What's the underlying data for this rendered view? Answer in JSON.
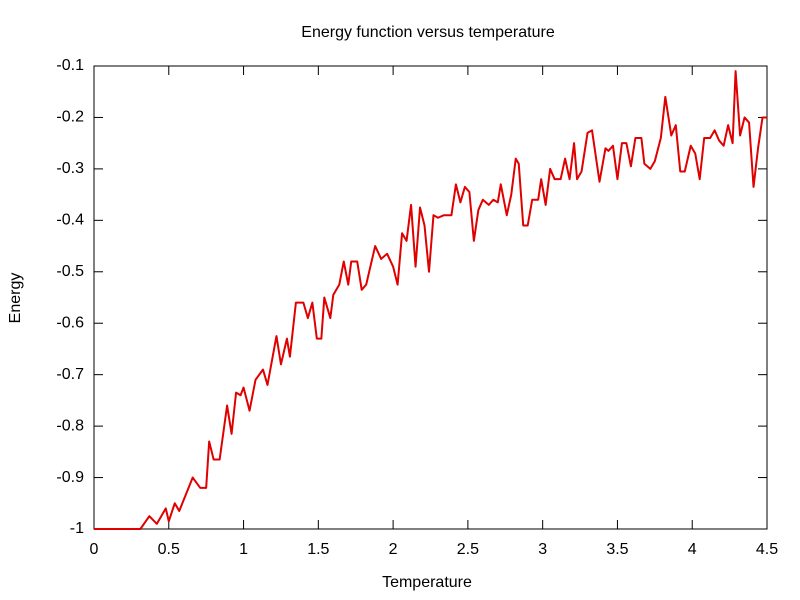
{
  "chart_data": {
    "type": "line",
    "title": "Energy function versus temperature",
    "x_label": "Temperature",
    "y_label": "Energy",
    "color": "#e00000",
    "xlim": [
      0,
      4.5
    ],
    "xticks": [
      0,
      0.5,
      1,
      1.5,
      2,
      2.5,
      3,
      3.5,
      4,
      4.5
    ],
    "ylim": [
      -1,
      -0.1
    ],
    "yticks": [
      -1,
      -0.9,
      -0.8,
      -0.7,
      -0.6,
      -0.5,
      -0.4,
      -0.3,
      -0.2,
      -0.1
    ],
    "x": [
      0,
      0.1,
      0.2,
      0.31,
      0.37,
      0.42,
      0.48,
      0.5,
      0.54,
      0.57,
      0.66,
      0.71,
      0.75,
      0.77,
      0.8,
      0.84,
      0.89,
      0.92,
      0.95,
      0.98,
      1.0,
      1.04,
      1.08,
      1.13,
      1.16,
      1.22,
      1.25,
      1.29,
      1.31,
      1.35,
      1.4,
      1.43,
      1.46,
      1.49,
      1.52,
      1.54,
      1.58,
      1.6,
      1.64,
      1.67,
      1.7,
      1.72,
      1.76,
      1.79,
      1.82,
      1.88,
      1.92,
      1.96,
      2.0,
      2.03,
      2.06,
      2.09,
      2.12,
      2.15,
      2.18,
      2.21,
      2.24,
      2.27,
      2.3,
      2.34,
      2.39,
      2.42,
      2.45,
      2.48,
      2.51,
      2.54,
      2.57,
      2.6,
      2.64,
      2.67,
      2.7,
      2.72,
      2.76,
      2.79,
      2.82,
      2.84,
      2.87,
      2.9,
      2.93,
      2.97,
      2.99,
      3.02,
      3.05,
      3.08,
      3.12,
      3.15,
      3.18,
      3.21,
      3.23,
      3.26,
      3.3,
      3.33,
      3.38,
      3.42,
      3.44,
      3.47,
      3.5,
      3.53,
      3.56,
      3.59,
      3.62,
      3.66,
      3.68,
      3.72,
      3.75,
      3.79,
      3.82,
      3.86,
      3.89,
      3.92,
      3.95,
      3.99,
      4.02,
      4.05,
      4.08,
      4.12,
      4.15,
      4.18,
      4.21,
      4.24,
      4.27,
      4.29,
      4.32,
      4.35,
      4.38,
      4.41,
      4.44,
      4.47,
      4.5
    ],
    "values": [
      -1,
      -1,
      -1,
      -1,
      -0.975,
      -0.99,
      -0.96,
      -0.985,
      -0.95,
      -0.965,
      -0.9,
      -0.92,
      -0.92,
      -0.83,
      -0.865,
      -0.865,
      -0.76,
      -0.815,
      -0.735,
      -0.74,
      -0.725,
      -0.77,
      -0.71,
      -0.69,
      -0.72,
      -0.625,
      -0.68,
      -0.63,
      -0.665,
      -0.56,
      -0.56,
      -0.59,
      -0.56,
      -0.63,
      -0.63,
      -0.55,
      -0.59,
      -0.545,
      -0.525,
      -0.48,
      -0.525,
      -0.48,
      -0.48,
      -0.535,
      -0.525,
      -0.45,
      -0.475,
      -0.465,
      -0.49,
      -0.525,
      -0.425,
      -0.44,
      -0.37,
      -0.49,
      -0.375,
      -0.41,
      -0.5,
      -0.39,
      -0.395,
      -0.39,
      -0.39,
      -0.33,
      -0.365,
      -0.335,
      -0.345,
      -0.44,
      -0.38,
      -0.36,
      -0.37,
      -0.36,
      -0.365,
      -0.33,
      -0.39,
      -0.35,
      -0.28,
      -0.29,
      -0.41,
      -0.41,
      -0.36,
      -0.36,
      -0.32,
      -0.37,
      -0.3,
      -0.32,
      -0.32,
      -0.28,
      -0.32,
      -0.25,
      -0.32,
      -0.305,
      -0.23,
      -0.225,
      -0.325,
      -0.26,
      -0.265,
      -0.255,
      -0.32,
      -0.25,
      -0.25,
      -0.295,
      -0.24,
      -0.24,
      -0.29,
      -0.3,
      -0.285,
      -0.24,
      -0.16,
      -0.235,
      -0.215,
      -0.305,
      -0.305,
      -0.255,
      -0.27,
      -0.32,
      -0.24,
      -0.24,
      -0.225,
      -0.245,
      -0.255,
      -0.215,
      -0.25,
      -0.11,
      -0.235,
      -0.2,
      -0.21,
      -0.335,
      -0.26,
      -0.2,
      -0.2
    ]
  }
}
